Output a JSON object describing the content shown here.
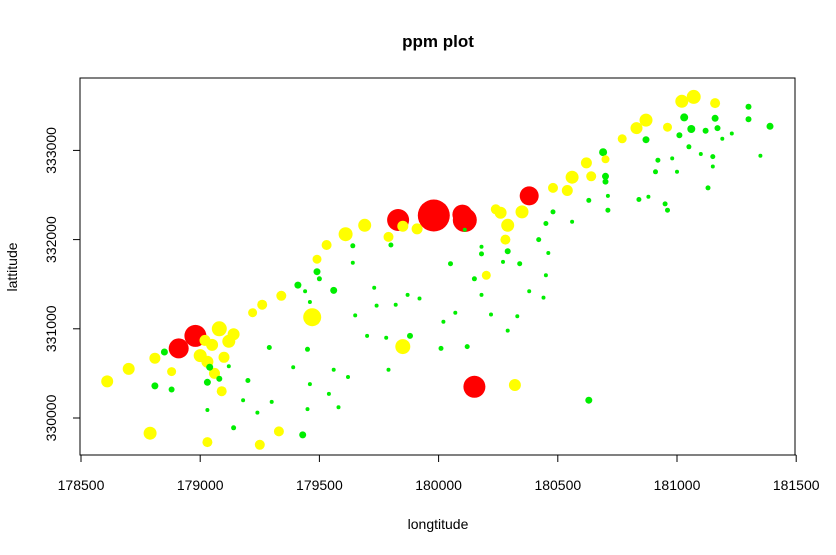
{
  "chart_data": {
    "type": "scatter",
    "title": "ppm plot",
    "xlabel": "longtitude",
    "ylabel": "lattitude",
    "xlim": [
      178600,
      181400
    ],
    "ylim": [
      329650,
      333600
    ],
    "x_ticks": [
      178500,
      179000,
      179500,
      180000,
      180500,
      181000,
      181500
    ],
    "y_ticks": [
      330000,
      331000,
      332000,
      333000
    ],
    "grid": false,
    "legend": "none",
    "colors": {
      "low": "#00ee00",
      "medium": "#ffff00",
      "high": "#ff0000"
    },
    "points": [
      {
        "x": 178610,
        "y": 330410,
        "c": "medium",
        "s": 6
      },
      {
        "x": 178700,
        "y": 330550,
        "c": "medium",
        "s": 6
      },
      {
        "x": 178790,
        "y": 329830,
        "c": "medium",
        "s": 6.5
      },
      {
        "x": 178810,
        "y": 330670,
        "c": "medium",
        "s": 5.5
      },
      {
        "x": 178810,
        "y": 330360,
        "c": "low",
        "s": 3.5
      },
      {
        "x": 178850,
        "y": 330740,
        "c": "low",
        "s": 3.5
      },
      {
        "x": 178880,
        "y": 330320,
        "c": "low",
        "s": 3
      },
      {
        "x": 178880,
        "y": 330520,
        "c": "medium",
        "s": 4.5
      },
      {
        "x": 178910,
        "y": 330780,
        "c": "high",
        "s": 10
      },
      {
        "x": 178980,
        "y": 330920,
        "c": "high",
        "s": 11
      },
      {
        "x": 179000,
        "y": 330700,
        "c": "medium",
        "s": 6.5
      },
      {
        "x": 179020,
        "y": 330870,
        "c": "medium",
        "s": 5.5
      },
      {
        "x": 179030,
        "y": 330630,
        "c": "medium",
        "s": 6
      },
      {
        "x": 179050,
        "y": 330820,
        "c": "medium",
        "s": 6
      },
      {
        "x": 179060,
        "y": 330500,
        "c": "medium",
        "s": 5.5
      },
      {
        "x": 179080,
        "y": 331000,
        "c": "medium",
        "s": 7.5
      },
      {
        "x": 179100,
        "y": 330680,
        "c": "medium",
        "s": 5.5
      },
      {
        "x": 179120,
        "y": 330860,
        "c": "medium",
        "s": 6.5
      },
      {
        "x": 179140,
        "y": 330940,
        "c": "medium",
        "s": 6
      },
      {
        "x": 179040,
        "y": 330570,
        "c": "low",
        "s": 3.5
      },
      {
        "x": 179030,
        "y": 330400,
        "c": "low",
        "s": 3.5
      },
      {
        "x": 179080,
        "y": 330440,
        "c": "low",
        "s": 3
      },
      {
        "x": 179090,
        "y": 330300,
        "c": "medium",
        "s": 5
      },
      {
        "x": 179030,
        "y": 329730,
        "c": "medium",
        "s": 5
      },
      {
        "x": 179030,
        "y": 330090,
        "c": "low",
        "s": 2
      },
      {
        "x": 179120,
        "y": 330580,
        "c": "low",
        "s": 2
      },
      {
        "x": 179140,
        "y": 329890,
        "c": "low",
        "s": 2.5
      },
      {
        "x": 179180,
        "y": 330200,
        "c": "low",
        "s": 2
      },
      {
        "x": 179200,
        "y": 330420,
        "c": "low",
        "s": 2.5
      },
      {
        "x": 179220,
        "y": 331180,
        "c": "medium",
        "s": 4.5
      },
      {
        "x": 179240,
        "y": 330060,
        "c": "low",
        "s": 2
      },
      {
        "x": 179250,
        "y": 329700,
        "c": "medium",
        "s": 5
      },
      {
        "x": 179260,
        "y": 331270,
        "c": "medium",
        "s": 5
      },
      {
        "x": 179290,
        "y": 330790,
        "c": "low",
        "s": 2.5
      },
      {
        "x": 179300,
        "y": 330180,
        "c": "low",
        "s": 2
      },
      {
        "x": 179330,
        "y": 329850,
        "c": "medium",
        "s": 5
      },
      {
        "x": 179340,
        "y": 331370,
        "c": "medium",
        "s": 5
      },
      {
        "x": 179390,
        "y": 330570,
        "c": "low",
        "s": 2
      },
      {
        "x": 179410,
        "y": 331490,
        "c": "low",
        "s": 3.5
      },
      {
        "x": 179430,
        "y": 329810,
        "c": "low",
        "s": 3.5
      },
      {
        "x": 179440,
        "y": 331420,
        "c": "low",
        "s": 2
      },
      {
        "x": 179450,
        "y": 330770,
        "c": "low",
        "s": 2.5
      },
      {
        "x": 179450,
        "y": 330100,
        "c": "low",
        "s": 2
      },
      {
        "x": 179470,
        "y": 331130,
        "c": "medium",
        "s": 9
      },
      {
        "x": 179490,
        "y": 331640,
        "c": "low",
        "s": 3.5
      },
      {
        "x": 179490,
        "y": 331780,
        "c": "medium",
        "s": 4.5
      },
      {
        "x": 179460,
        "y": 331300,
        "c": "low",
        "s": 2
      },
      {
        "x": 179460,
        "y": 330380,
        "c": "low",
        "s": 2
      },
      {
        "x": 179500,
        "y": 331560,
        "c": "low",
        "s": 2.5
      },
      {
        "x": 179530,
        "y": 331940,
        "c": "medium",
        "s": 5
      },
      {
        "x": 179540,
        "y": 330270,
        "c": "low",
        "s": 2
      },
      {
        "x": 179560,
        "y": 331430,
        "c": "low",
        "s": 3.5
      },
      {
        "x": 179560,
        "y": 330540,
        "c": "low",
        "s": 2
      },
      {
        "x": 179580,
        "y": 330120,
        "c": "low",
        "s": 2
      },
      {
        "x": 179610,
        "y": 332060,
        "c": "medium",
        "s": 7
      },
      {
        "x": 179620,
        "y": 330460,
        "c": "low",
        "s": 2
      },
      {
        "x": 179640,
        "y": 331930,
        "c": "low",
        "s": 2.5
      },
      {
        "x": 179640,
        "y": 331740,
        "c": "low",
        "s": 2
      },
      {
        "x": 179650,
        "y": 331150,
        "c": "low",
        "s": 2
      },
      {
        "x": 179690,
        "y": 332160,
        "c": "medium",
        "s": 6.5
      },
      {
        "x": 179700,
        "y": 330920,
        "c": "low",
        "s": 2
      },
      {
        "x": 179730,
        "y": 331460,
        "c": "low",
        "s": 2
      },
      {
        "x": 179740,
        "y": 331260,
        "c": "low",
        "s": 2
      },
      {
        "x": 179780,
        "y": 330900,
        "c": "low",
        "s": 2
      },
      {
        "x": 179790,
        "y": 332030,
        "c": "medium",
        "s": 5
      },
      {
        "x": 179790,
        "y": 330540,
        "c": "low",
        "s": 2
      },
      {
        "x": 179800,
        "y": 331940,
        "c": "low",
        "s": 2.5
      },
      {
        "x": 179820,
        "y": 331270,
        "c": "low",
        "s": 2
      },
      {
        "x": 179830,
        "y": 332220,
        "c": "high",
        "s": 11
      },
      {
        "x": 179850,
        "y": 332150,
        "c": "medium",
        "s": 5.5
      },
      {
        "x": 179850,
        "y": 330800,
        "c": "medium",
        "s": 7.5
      },
      {
        "x": 179870,
        "y": 331380,
        "c": "low",
        "s": 2
      },
      {
        "x": 179880,
        "y": 330920,
        "c": "low",
        "s": 3
      },
      {
        "x": 179910,
        "y": 332120,
        "c": "medium",
        "s": 5.5
      },
      {
        "x": 179920,
        "y": 331340,
        "c": "low",
        "s": 2
      },
      {
        "x": 179980,
        "y": 332270,
        "c": "high",
        "s": 16
      },
      {
        "x": 180010,
        "y": 330780,
        "c": "low",
        "s": 2.5
      },
      {
        "x": 180020,
        "y": 331080,
        "c": "low",
        "s": 2
      },
      {
        "x": 180050,
        "y": 331730,
        "c": "low",
        "s": 2.5
      },
      {
        "x": 180070,
        "y": 331180,
        "c": "low",
        "s": 2
      },
      {
        "x": 180100,
        "y": 332280,
        "c": "high",
        "s": 10
      },
      {
        "x": 180110,
        "y": 332220,
        "c": "high",
        "s": 12
      },
      {
        "x": 180110,
        "y": 332110,
        "c": "low",
        "s": 2
      },
      {
        "x": 180120,
        "y": 330800,
        "c": "low",
        "s": 2.5
      },
      {
        "x": 180150,
        "y": 330350,
        "c": "high",
        "s": 11
      },
      {
        "x": 180150,
        "y": 331560,
        "c": "low",
        "s": 2.5
      },
      {
        "x": 180180,
        "y": 331840,
        "c": "low",
        "s": 2.5
      },
      {
        "x": 180180,
        "y": 331920,
        "c": "low",
        "s": 2
      },
      {
        "x": 180180,
        "y": 331380,
        "c": "low",
        "s": 2
      },
      {
        "x": 180200,
        "y": 331600,
        "c": "medium",
        "s": 4.5
      },
      {
        "x": 180220,
        "y": 331160,
        "c": "low",
        "s": 2
      },
      {
        "x": 180240,
        "y": 332340,
        "c": "medium",
        "s": 5
      },
      {
        "x": 180260,
        "y": 332300,
        "c": "medium",
        "s": 6
      },
      {
        "x": 180270,
        "y": 331750,
        "c": "low",
        "s": 2
      },
      {
        "x": 180280,
        "y": 332000,
        "c": "medium",
        "s": 5
      },
      {
        "x": 180290,
        "y": 332160,
        "c": "medium",
        "s": 6.5
      },
      {
        "x": 180290,
        "y": 331870,
        "c": "low",
        "s": 3
      },
      {
        "x": 180290,
        "y": 330980,
        "c": "low",
        "s": 2
      },
      {
        "x": 180320,
        "y": 330370,
        "c": "medium",
        "s": 6
      },
      {
        "x": 180330,
        "y": 331140,
        "c": "low",
        "s": 2
      },
      {
        "x": 180340,
        "y": 331730,
        "c": "low",
        "s": 2.5
      },
      {
        "x": 180350,
        "y": 332310,
        "c": "medium",
        "s": 6.5
      },
      {
        "x": 180380,
        "y": 332490,
        "c": "high",
        "s": 9.5
      },
      {
        "x": 180380,
        "y": 331420,
        "c": "low",
        "s": 2
      },
      {
        "x": 180420,
        "y": 332000,
        "c": "low",
        "s": 2.5
      },
      {
        "x": 180440,
        "y": 331350,
        "c": "low",
        "s": 2
      },
      {
        "x": 180450,
        "y": 332180,
        "c": "low",
        "s": 2.5
      },
      {
        "x": 180450,
        "y": 331600,
        "c": "low",
        "s": 2
      },
      {
        "x": 180460,
        "y": 331850,
        "c": "low",
        "s": 2
      },
      {
        "x": 180480,
        "y": 332580,
        "c": "medium",
        "s": 5
      },
      {
        "x": 180480,
        "y": 332310,
        "c": "low",
        "s": 2.5
      },
      {
        "x": 180540,
        "y": 332550,
        "c": "medium",
        "s": 5.5
      },
      {
        "x": 180560,
        "y": 332700,
        "c": "medium",
        "s": 6.5
      },
      {
        "x": 180560,
        "y": 332200,
        "c": "low",
        "s": 2
      },
      {
        "x": 180620,
        "y": 332860,
        "c": "medium",
        "s": 5.5
      },
      {
        "x": 180630,
        "y": 330200,
        "c": "low",
        "s": 3.5
      },
      {
        "x": 180630,
        "y": 332440,
        "c": "low",
        "s": 2.5
      },
      {
        "x": 180640,
        "y": 332710,
        "c": "medium",
        "s": 5
      },
      {
        "x": 180690,
        "y": 332980,
        "c": "low",
        "s": 4
      },
      {
        "x": 180700,
        "y": 332900,
        "c": "medium",
        "s": 4
      },
      {
        "x": 180700,
        "y": 332710,
        "c": "low",
        "s": 3.5
      },
      {
        "x": 180700,
        "y": 332650,
        "c": "low",
        "s": 3
      },
      {
        "x": 180710,
        "y": 332330,
        "c": "low",
        "s": 2.5
      },
      {
        "x": 180710,
        "y": 332490,
        "c": "low",
        "s": 2
      },
      {
        "x": 180770,
        "y": 333130,
        "c": "medium",
        "s": 4.5
      },
      {
        "x": 180830,
        "y": 333250,
        "c": "medium",
        "s": 6
      },
      {
        "x": 180840,
        "y": 332450,
        "c": "low",
        "s": 2.5
      },
      {
        "x": 180870,
        "y": 333340,
        "c": "medium",
        "s": 6.5
      },
      {
        "x": 180870,
        "y": 333120,
        "c": "low",
        "s": 3.5
      },
      {
        "x": 180880,
        "y": 332480,
        "c": "low",
        "s": 2
      },
      {
        "x": 180910,
        "y": 332760,
        "c": "low",
        "s": 2.5
      },
      {
        "x": 180920,
        "y": 332890,
        "c": "low",
        "s": 2.5
      },
      {
        "x": 180950,
        "y": 332400,
        "c": "low",
        "s": 2.5
      },
      {
        "x": 180960,
        "y": 332330,
        "c": "low",
        "s": 2.5
      },
      {
        "x": 180960,
        "y": 333260,
        "c": "medium",
        "s": 4.5
      },
      {
        "x": 180980,
        "y": 332910,
        "c": "low",
        "s": 2
      },
      {
        "x": 181000,
        "y": 332760,
        "c": "low",
        "s": 2
      },
      {
        "x": 181010,
        "y": 333170,
        "c": "low",
        "s": 3
      },
      {
        "x": 181020,
        "y": 333550,
        "c": "medium",
        "s": 6.5
      },
      {
        "x": 181030,
        "y": 333370,
        "c": "low",
        "s": 4
      },
      {
        "x": 181050,
        "y": 333040,
        "c": "low",
        "s": 2.5
      },
      {
        "x": 181060,
        "y": 333240,
        "c": "low",
        "s": 4
      },
      {
        "x": 181070,
        "y": 333600,
        "c": "medium",
        "s": 7
      },
      {
        "x": 181100,
        "y": 332960,
        "c": "low",
        "s": 2
      },
      {
        "x": 181120,
        "y": 333220,
        "c": "low",
        "s": 3
      },
      {
        "x": 181130,
        "y": 332580,
        "c": "low",
        "s": 2.5
      },
      {
        "x": 181150,
        "y": 332930,
        "c": "low",
        "s": 2.5
      },
      {
        "x": 181150,
        "y": 332820,
        "c": "low",
        "s": 2
      },
      {
        "x": 181160,
        "y": 333530,
        "c": "medium",
        "s": 5
      },
      {
        "x": 181160,
        "y": 333360,
        "c": "low",
        "s": 3.5
      },
      {
        "x": 181170,
        "y": 333250,
        "c": "low",
        "s": 3
      },
      {
        "x": 181190,
        "y": 333130,
        "c": "low",
        "s": 2
      },
      {
        "x": 181230,
        "y": 333190,
        "c": "low",
        "s": 2
      },
      {
        "x": 181300,
        "y": 333490,
        "c": "low",
        "s": 3
      },
      {
        "x": 181300,
        "y": 333350,
        "c": "low",
        "s": 3
      },
      {
        "x": 181350,
        "y": 332940,
        "c": "low",
        "s": 2
      },
      {
        "x": 181390,
        "y": 333270,
        "c": "low",
        "s": 3.5
      }
    ]
  }
}
